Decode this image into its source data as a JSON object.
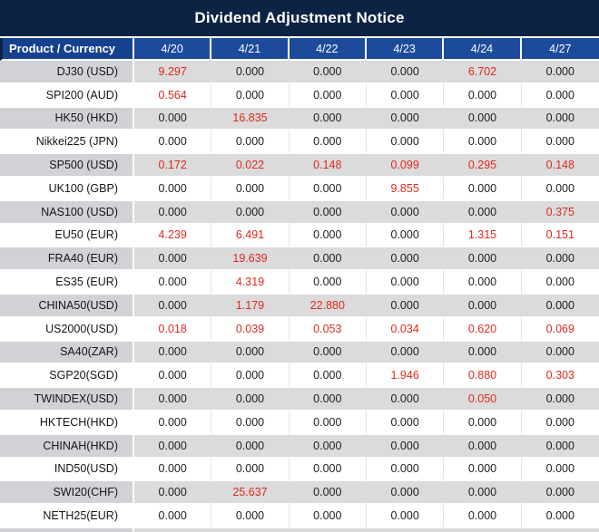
{
  "title": "Dividend Adjustment Notice",
  "chart_data": {
    "type": "table",
    "title": "Dividend Adjustment Notice",
    "columns": [
      "Product / Currency",
      "4/20",
      "4/21",
      "4/22",
      "4/23",
      "4/24",
      "4/27"
    ],
    "rows": [
      {
        "product": "DJ30 (USD)",
        "values": [
          "9.297",
          "0.000",
          "0.000",
          "0.000",
          "6.702",
          "0.000"
        ]
      },
      {
        "product": "SPI200 (AUD)",
        "values": [
          "0.564",
          "0.000",
          "0.000",
          "0.000",
          "0.000",
          "0.000"
        ]
      },
      {
        "product": "HK50 (HKD)",
        "values": [
          "0.000",
          "16.835",
          "0.000",
          "0.000",
          "0.000",
          "0.000"
        ]
      },
      {
        "product": "Nikkei225 (JPN)",
        "values": [
          "0.000",
          "0.000",
          "0.000",
          "0.000",
          "0.000",
          "0.000"
        ]
      },
      {
        "product": "SP500 (USD)",
        "values": [
          "0.172",
          "0.022",
          "0.148",
          "0.099",
          "0.295",
          "0.148"
        ]
      },
      {
        "product": "UK100 (GBP)",
        "values": [
          "0.000",
          "0.000",
          "0.000",
          "9.855",
          "0.000",
          "0.000"
        ]
      },
      {
        "product": "NAS100 (USD)",
        "values": [
          "0.000",
          "0.000",
          "0.000",
          "0.000",
          "0.000",
          "0.375"
        ]
      },
      {
        "product": "EU50 (EUR)",
        "values": [
          "4.239",
          "6.491",
          "0.000",
          "0.000",
          "1.315",
          "0.151"
        ]
      },
      {
        "product": "FRA40 (EUR)",
        "values": [
          "0.000",
          "19.639",
          "0.000",
          "0.000",
          "0.000",
          "0.000"
        ]
      },
      {
        "product": "ES35 (EUR)",
        "values": [
          "0.000",
          "4.319",
          "0.000",
          "0.000",
          "0.000",
          "0.000"
        ]
      },
      {
        "product": "CHINA50(USD)",
        "values": [
          "0.000",
          "1.179",
          "22.880",
          "0.000",
          "0.000",
          "0.000"
        ]
      },
      {
        "product": "US2000(USD)",
        "values": [
          "0.018",
          "0.039",
          "0.053",
          "0.034",
          "0.620",
          "0.069"
        ]
      },
      {
        "product": "SA40(ZAR)",
        "values": [
          "0.000",
          "0.000",
          "0.000",
          "0.000",
          "0.000",
          "0.000"
        ]
      },
      {
        "product": "SGP20(SGD)",
        "values": [
          "0.000",
          "0.000",
          "0.000",
          "1.946",
          "0.880",
          "0.303"
        ]
      },
      {
        "product": "TWINDEX(USD)",
        "values": [
          "0.000",
          "0.000",
          "0.000",
          "0.000",
          "0.050",
          "0.000"
        ]
      },
      {
        "product": "HKTECH(HKD)",
        "values": [
          "0.000",
          "0.000",
          "0.000",
          "0.000",
          "0.000",
          "0.000"
        ]
      },
      {
        "product": "CHINAH(HKD)",
        "values": [
          "0.000",
          "0.000",
          "0.000",
          "0.000",
          "0.000",
          "0.000"
        ]
      },
      {
        "product": "IND50(USD)",
        "values": [
          "0.000",
          "0.000",
          "0.000",
          "0.000",
          "0.000",
          "0.000"
        ]
      },
      {
        "product": "SWI20(CHF)",
        "values": [
          "0.000",
          "25.637",
          "0.000",
          "0.000",
          "0.000",
          "0.000"
        ]
      },
      {
        "product": "NETH25(EUR)",
        "values": [
          "0.000",
          "0.000",
          "0.000",
          "0.000",
          "0.000",
          "0.000"
        ]
      }
    ],
    "layout_hints": {
      "striped_rows": true,
      "highlight_rule": "non-zero dividend values rendered in red"
    }
  },
  "colors": {
    "title_bar_bg": "#0d2343",
    "header_bg": "#1c4b9c",
    "product_header_bg": "#16418f",
    "stripe_data_bg": "#dbdbdb",
    "stripe_label_bg": "#d0d2d5",
    "zero_value": "#1e1e1e",
    "nonzero_value": "#dc2a1e",
    "header_text": "#ffffff"
  }
}
